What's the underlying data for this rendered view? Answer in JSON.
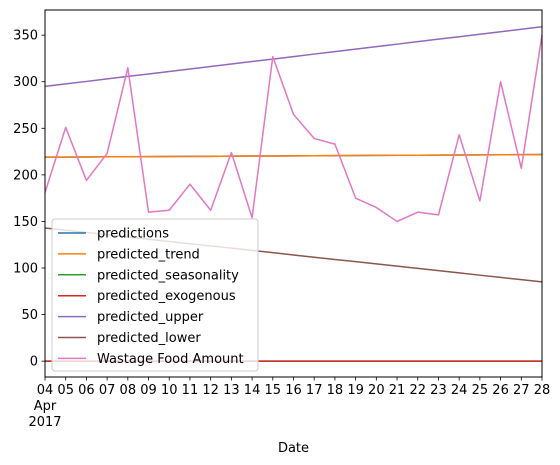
{
  "chart_data": {
    "type": "line",
    "xlabel": "Date",
    "ylabel": "",
    "x_month_label": "Apr",
    "x_year_label": "2017",
    "x": [
      "04",
      "05",
      "06",
      "07",
      "08",
      "09",
      "10",
      "11",
      "12",
      "13",
      "14",
      "15",
      "16",
      "17",
      "18",
      "19",
      "20",
      "21",
      "22",
      "23",
      "24",
      "25",
      "26",
      "27",
      "28"
    ],
    "ylim": [
      -17,
      377
    ],
    "yticks": [
      0,
      50,
      100,
      150,
      200,
      250,
      300,
      350
    ],
    "grid": false,
    "legend_position": "lower-left",
    "series": [
      {
        "name": "predictions",
        "color": "#1f77b4",
        "values": [
          219,
          219.1,
          219.2,
          219.4,
          219.5,
          219.6,
          219.7,
          219.8,
          219.9,
          220.1,
          220.2,
          220.3,
          220.4,
          220.5,
          220.6,
          220.8,
          220.9,
          221,
          221.1,
          221.2,
          221.3,
          221.5,
          221.6,
          221.7,
          221.8
        ]
      },
      {
        "name": "predicted_trend",
        "color": "#ff7f0e",
        "values": [
          219,
          219.1,
          219.2,
          219.4,
          219.5,
          219.6,
          219.7,
          219.8,
          219.9,
          220.1,
          220.2,
          220.3,
          220.4,
          220.5,
          220.6,
          220.8,
          220.9,
          221,
          221.1,
          221.2,
          221.3,
          221.5,
          221.6,
          221.7,
          221.8
        ]
      },
      {
        "name": "predicted_seasonality",
        "color": "#2ca02c",
        "values": [
          0,
          0,
          0,
          0,
          0,
          0,
          0,
          0,
          0,
          0,
          0,
          0,
          0,
          0,
          0,
          0,
          0,
          0,
          0,
          0,
          0,
          0,
          0,
          0,
          0
        ]
      },
      {
        "name": "predicted_exogenous",
        "color": "#d62728",
        "values": [
          0,
          0,
          0,
          0,
          0,
          0,
          0,
          0,
          0,
          0,
          0,
          0,
          0,
          0,
          0,
          0,
          0,
          0,
          0,
          0,
          0,
          0,
          0,
          0,
          0
        ]
      },
      {
        "name": "predicted_upper",
        "color": "#9467bd",
        "values": [
          295,
          297.7,
          300.3,
          303,
          305.7,
          308.3,
          311,
          313.7,
          316.3,
          319,
          321.7,
          324.3,
          327,
          329.7,
          332.3,
          335,
          337.7,
          340.3,
          343,
          345.7,
          348.3,
          351,
          353.7,
          356.3,
          359
        ]
      },
      {
        "name": "predicted_lower",
        "color": "#8c564b",
        "values": [
          143,
          140.6,
          138.2,
          135.8,
          133.3,
          130.9,
          128.5,
          126.1,
          123.7,
          121.3,
          118.9,
          116.5,
          114,
          111.6,
          109.2,
          106.8,
          104.4,
          102,
          99.6,
          97.2,
          94.8,
          92.3,
          89.9,
          87.5,
          85.1
        ]
      },
      {
        "name": "Wastage Food Amount",
        "color": "#e377c2",
        "values": [
          181,
          251,
          194,
          223,
          315,
          160,
          162,
          190,
          162,
          224,
          154,
          327,
          265,
          239,
          233,
          175,
          165,
          150,
          160,
          157,
          243,
          172,
          300,
          207,
          350
        ]
      }
    ]
  }
}
